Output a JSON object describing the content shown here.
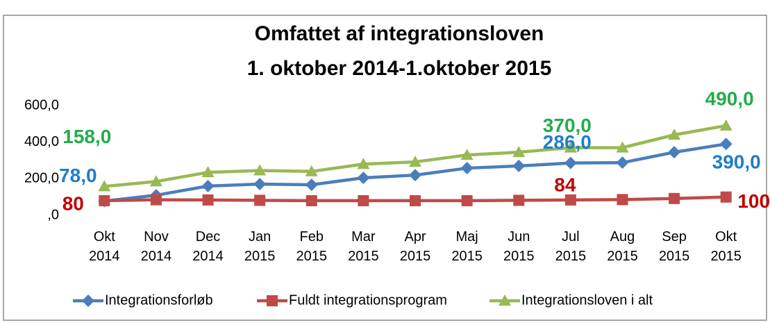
{
  "chart_data": {
    "type": "line",
    "title": [
      "Omfattet af integrationsloven",
      "1. oktober 2014-1.oktober 2015"
    ],
    "categories": [
      "Okt 2014",
      "Nov 2014",
      "Dec 2014",
      "Jan 2015",
      "Feb 2015",
      "Mar 2015",
      "Apr 2015",
      "Maj 2015",
      "Jun 2015",
      "Jul 2015",
      "Aug 2015",
      "Sep 2015",
      "Okt 2015"
    ],
    "ylim": [
      0,
      600
    ],
    "yticks": [
      {
        "value": 0,
        "label": ",0"
      },
      {
        "value": 200,
        "label": "200,0"
      },
      {
        "value": 400,
        "label": "400,0"
      },
      {
        "value": 600,
        "label": "600,0"
      }
    ],
    "legend": "bottom",
    "series": [
      {
        "name": "Integrationsforløb",
        "color": "#4a7ebb",
        "label_color": "#1f7ec8",
        "marker": "diamond",
        "values": [
          78,
          110,
          160,
          171,
          167,
          205,
          220,
          258,
          270,
          286,
          288,
          345,
          390
        ],
        "value_labels": [
          "78,0",
          null,
          null,
          null,
          null,
          null,
          null,
          null,
          null,
          "286,0",
          null,
          null,
          "390,0"
        ]
      },
      {
        "name": "Fuldt integrationsprogram",
        "color": "#be4b48",
        "label_color": "#c00000",
        "marker": "square",
        "values": [
          80,
          85,
          84,
          82,
          80,
          80,
          80,
          80,
          82,
          84,
          86,
          92,
          100
        ],
        "value_labels": [
          "80",
          null,
          null,
          null,
          null,
          null,
          null,
          null,
          null,
          "84",
          null,
          null,
          "100"
        ]
      },
      {
        "name": "Integrationsloven i alt",
        "color": "#98b954",
        "label_color": "#22ad4b",
        "marker": "triangle",
        "values": [
          158,
          185,
          235,
          245,
          240,
          280,
          292,
          330,
          345,
          370,
          370,
          440,
          490
        ],
        "value_labels": [
          "158,0",
          null,
          null,
          null,
          null,
          null,
          null,
          null,
          null,
          "370,0",
          null,
          null,
          "490,0"
        ]
      }
    ]
  }
}
